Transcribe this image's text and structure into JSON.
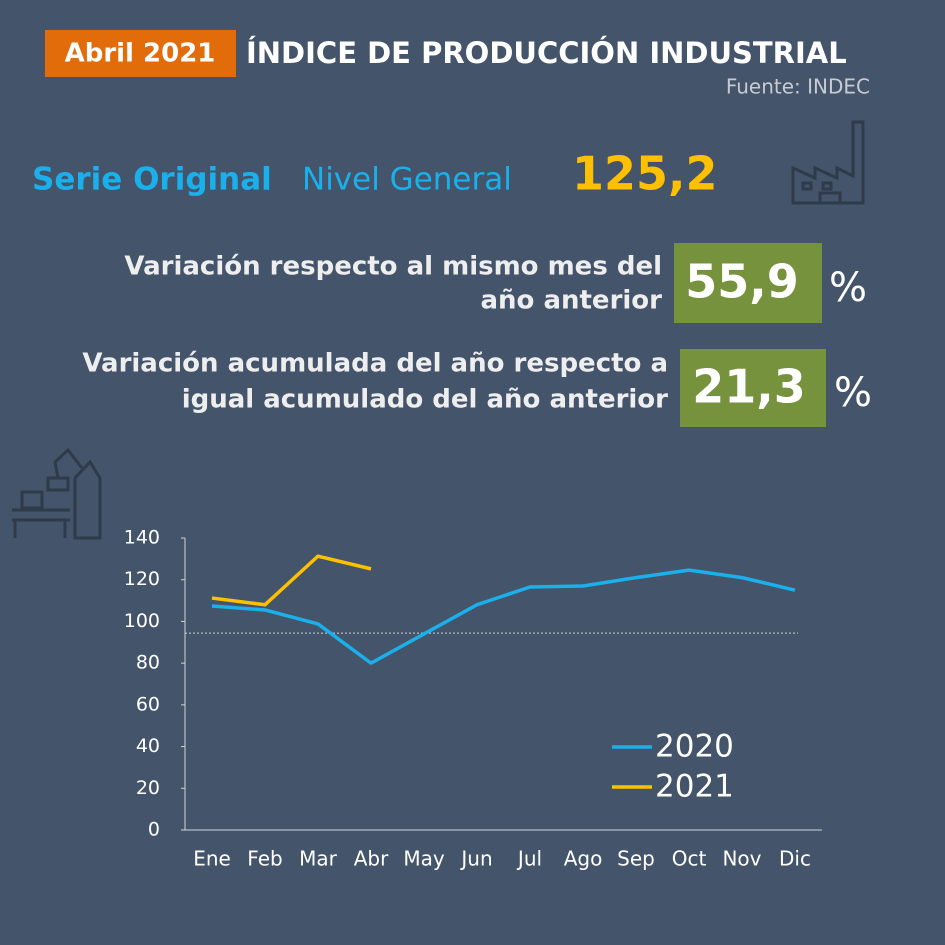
{
  "header": {
    "period": "Abril 2021",
    "title": "ÍNDICE DE PRODUCCIÓN INDUSTRIAL",
    "source": "Fuente: INDEC"
  },
  "headline": {
    "series_label": "Serie Original",
    "level_label": "Nivel General",
    "value": "125,2"
  },
  "variations": [
    {
      "label_lines": [
        "Variación respecto al mismo mes del",
        "año anterior"
      ],
      "value": "55,9",
      "unit": "%"
    },
    {
      "label_lines": [
        "Variación acumulada del año respecto a",
        "igual acumulado del año anterior"
      ],
      "value": "21,3",
      "unit": "%"
    }
  ],
  "chart_data": {
    "type": "line",
    "categories": [
      "Ene",
      "Feb",
      "Mar",
      "Abr",
      "May",
      "Jun",
      "Jul",
      "Ago",
      "Sep",
      "Oct",
      "Nov",
      "Dic"
    ],
    "series": [
      {
        "name": "2020",
        "color": "#1ab0ec",
        "values": [
          107.4,
          105.5,
          98.8,
          80,
          94,
          108,
          116.5,
          117,
          121,
          124.6,
          121,
          115
        ]
      },
      {
        "name": "2021",
        "color": "#ffc000",
        "values": [
          111.2,
          108,
          131.3,
          125.2,
          null,
          null,
          null,
          null,
          null,
          null,
          null,
          null
        ]
      }
    ],
    "ylim": [
      0,
      140
    ],
    "yticks": [
      0,
      20,
      40,
      60,
      80,
      100,
      120,
      140
    ],
    "reference_line": 94.4,
    "grid": false,
    "legend": "lower-right"
  }
}
